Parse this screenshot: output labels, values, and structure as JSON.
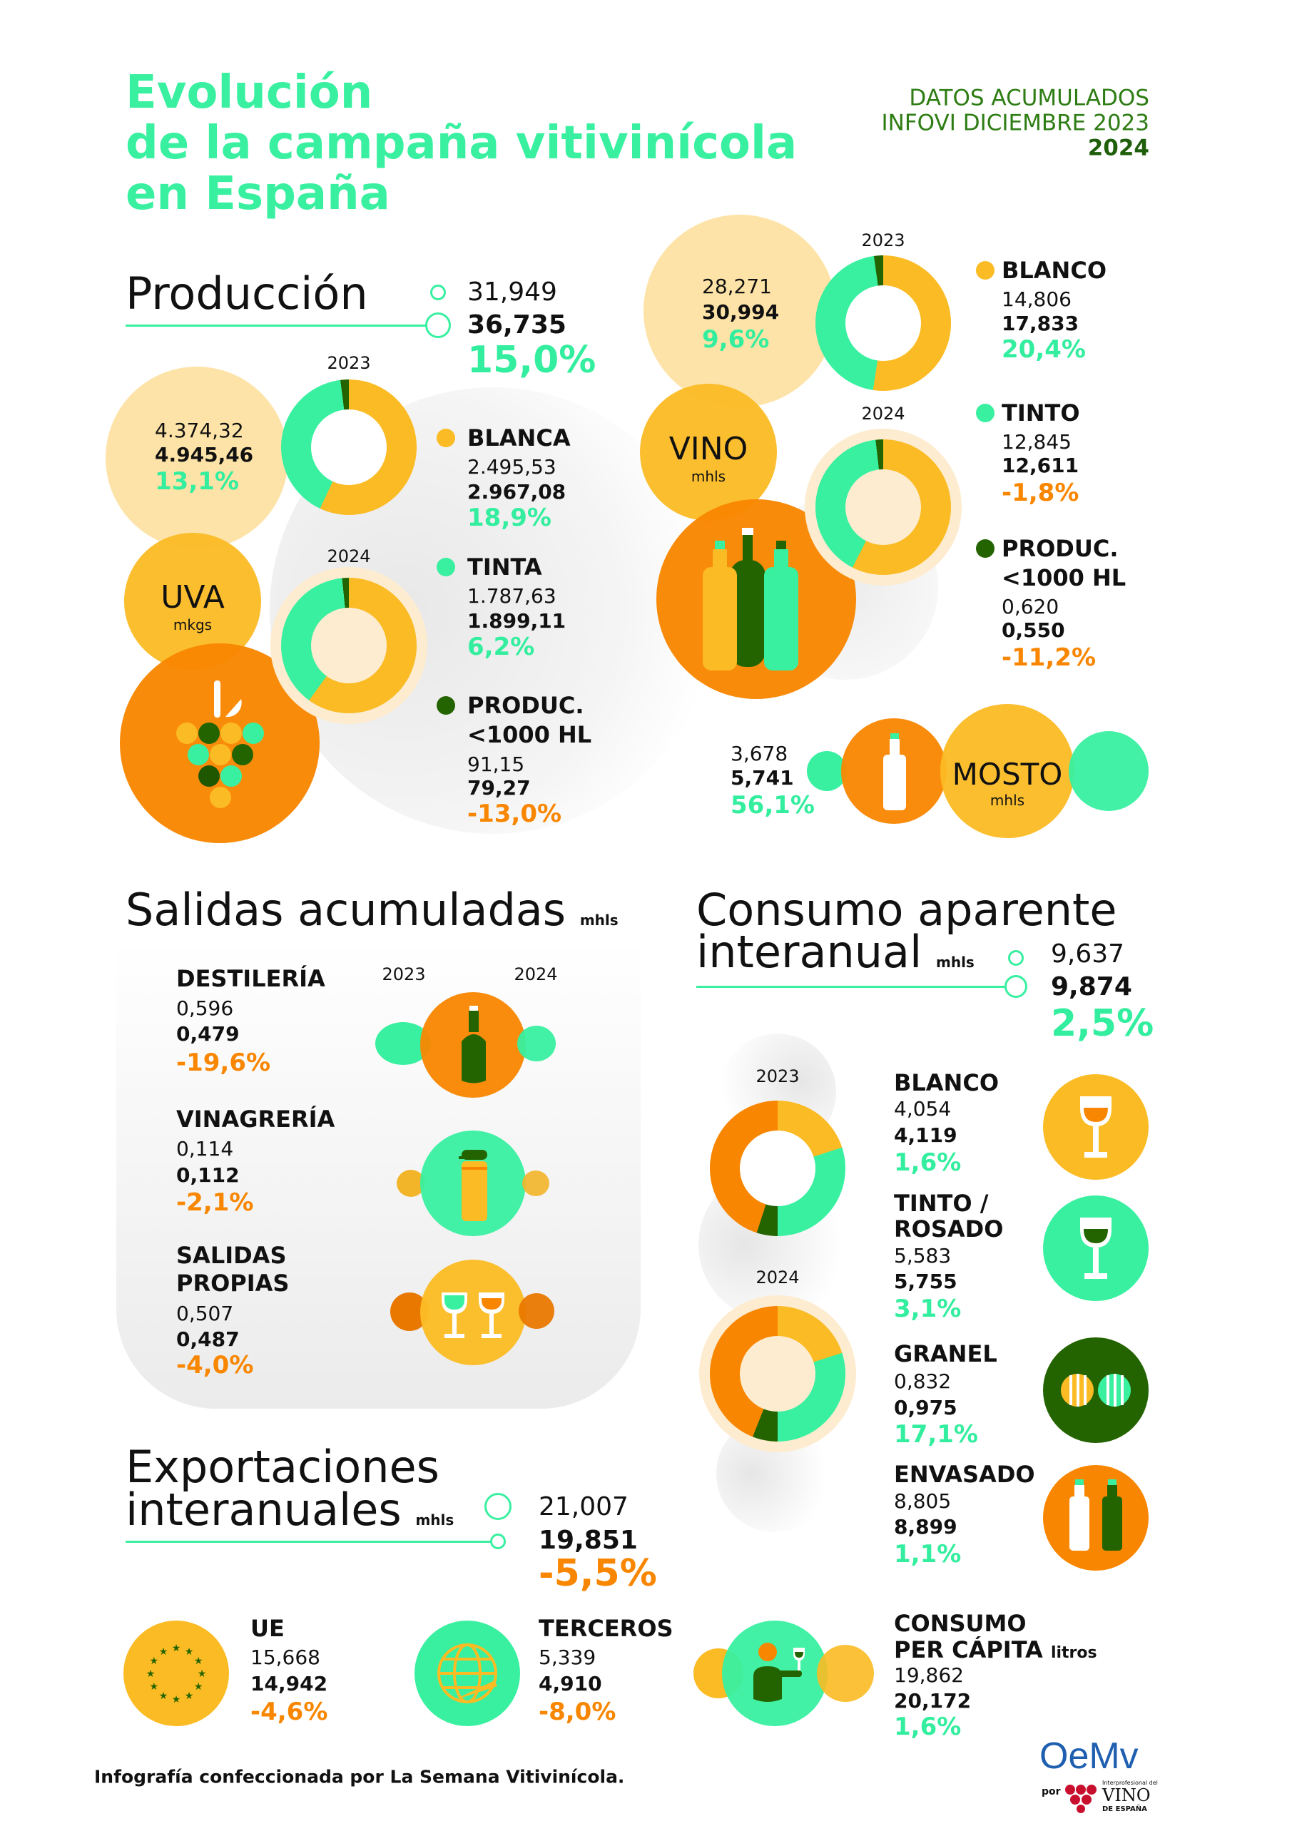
{
  "colors": {
    "teal": "#38f0a0",
    "yellow": "#fbbb24",
    "light_yellow": "#fde3a7",
    "orange": "#f98600",
    "dark_green": "#246400"
  },
  "title": [
    "Evolución",
    "de la campaña vitivinícola",
    "en España"
  ],
  "header": {
    "line1": "DATOS ACUMULADOS",
    "line2": "INFOVI DICIEMBRE",
    "year_prev": "2023",
    "year_curr": "2024"
  },
  "produccion": {
    "heading": "Producción",
    "prev": "31,949",
    "curr": "36,735",
    "change": "15,0%",
    "uva": {
      "label": "UVA",
      "unit": "mkgs",
      "prev": "4.374,32",
      "curr": "4.945,46",
      "change": "13,1%",
      "year_prev": "2023",
      "year_curr": "2024",
      "items": [
        {
          "label": "BLANCA",
          "prev": "2.495,53",
          "curr": "2.967,08",
          "change": "18,9%"
        },
        {
          "label": "TINTA",
          "prev": "1.787,63",
          "curr": "1.899,11",
          "change": "6,2%"
        },
        {
          "label": "PRODUC.",
          "label2": "<1000 HL",
          "prev": "91,15",
          "curr": "79,27",
          "change": "-13,0%"
        }
      ]
    },
    "vino": {
      "label": "VINO",
      "unit": "mhls",
      "prev": "28,271",
      "curr": "30,994",
      "change": "9,6%",
      "year_prev": "2023",
      "year_curr": "2024",
      "items": [
        {
          "label": "BLANCO",
          "prev": "14,806",
          "curr": "17,833",
          "change": "20,4%"
        },
        {
          "label": "TINTO",
          "prev": "12,845",
          "curr": "12,611",
          "change": "-1,8%"
        },
        {
          "label": "PRODUC.",
          "label2": "<1000 HL",
          "prev": "0,620",
          "curr": "0,550",
          "change": "-11,2%"
        }
      ]
    },
    "mosto": {
      "label": "MOSTO",
      "unit": "mhls",
      "prev": "3,678",
      "curr": "5,741",
      "change": "56,1%"
    }
  },
  "salidas": {
    "heading": "Salidas acumuladas",
    "unit": "mhls",
    "year_prev": "2023",
    "year_curr": "2024",
    "items": [
      {
        "label": "DESTILERÍA",
        "prev": "0,596",
        "curr": "0,479",
        "change": "-19,6%"
      },
      {
        "label": "VINAGRERÍA",
        "prev": "0,114",
        "curr": "0,112",
        "change": "-2,1%"
      },
      {
        "label": "SALIDAS",
        "label2": "PROPIAS",
        "prev": "0,507",
        "curr": "0,487",
        "change": "-4,0%"
      }
    ]
  },
  "consumo": {
    "heading1": "Consumo aparente",
    "heading2": "interanual",
    "unit": "mhls",
    "prev": "9,637",
    "curr": "9,874",
    "change": "2,5%",
    "year_prev": "2023",
    "year_curr": "2024",
    "items": [
      {
        "label": "BLANCO",
        "prev": "4,054",
        "curr": "4,119",
        "change": "1,6%"
      },
      {
        "label": "TINTO /",
        "label2": "ROSADO",
        "prev": "5,583",
        "curr": "5,755",
        "change": "3,1%"
      },
      {
        "label": "GRANEL",
        "prev": "0,832",
        "curr": "0,975",
        "change": "17,1%"
      },
      {
        "label": "ENVASADO",
        "prev": "8,805",
        "curr": "8,899",
        "change": "1,1%"
      }
    ],
    "per_capita": {
      "label1": "CONSUMO",
      "label2": "PER CÁPITA",
      "unit": "litros",
      "prev": "19,862",
      "curr": "20,172",
      "change": "1,6%"
    }
  },
  "exportaciones": {
    "heading1": "Exportaciones",
    "heading2": "interanuales",
    "unit": "mhls",
    "prev": "21,007",
    "curr": "19,851",
    "change": "-5,5%",
    "items": [
      {
        "label": "UE",
        "prev": "15,668",
        "curr": "14,942",
        "change": "-4,6%"
      },
      {
        "label": "TERCEROS",
        "prev": "5,339",
        "curr": "4,910",
        "change": "-8,0%"
      }
    ]
  },
  "footer": "Infografía confeccionada por La Semana Vitivinícola.",
  "logo": {
    "main": "OeMv",
    "por": "por",
    "sub1": "Interprofesional del",
    "sub2": "VINO",
    "sub3": "DE ESPAÑA"
  }
}
